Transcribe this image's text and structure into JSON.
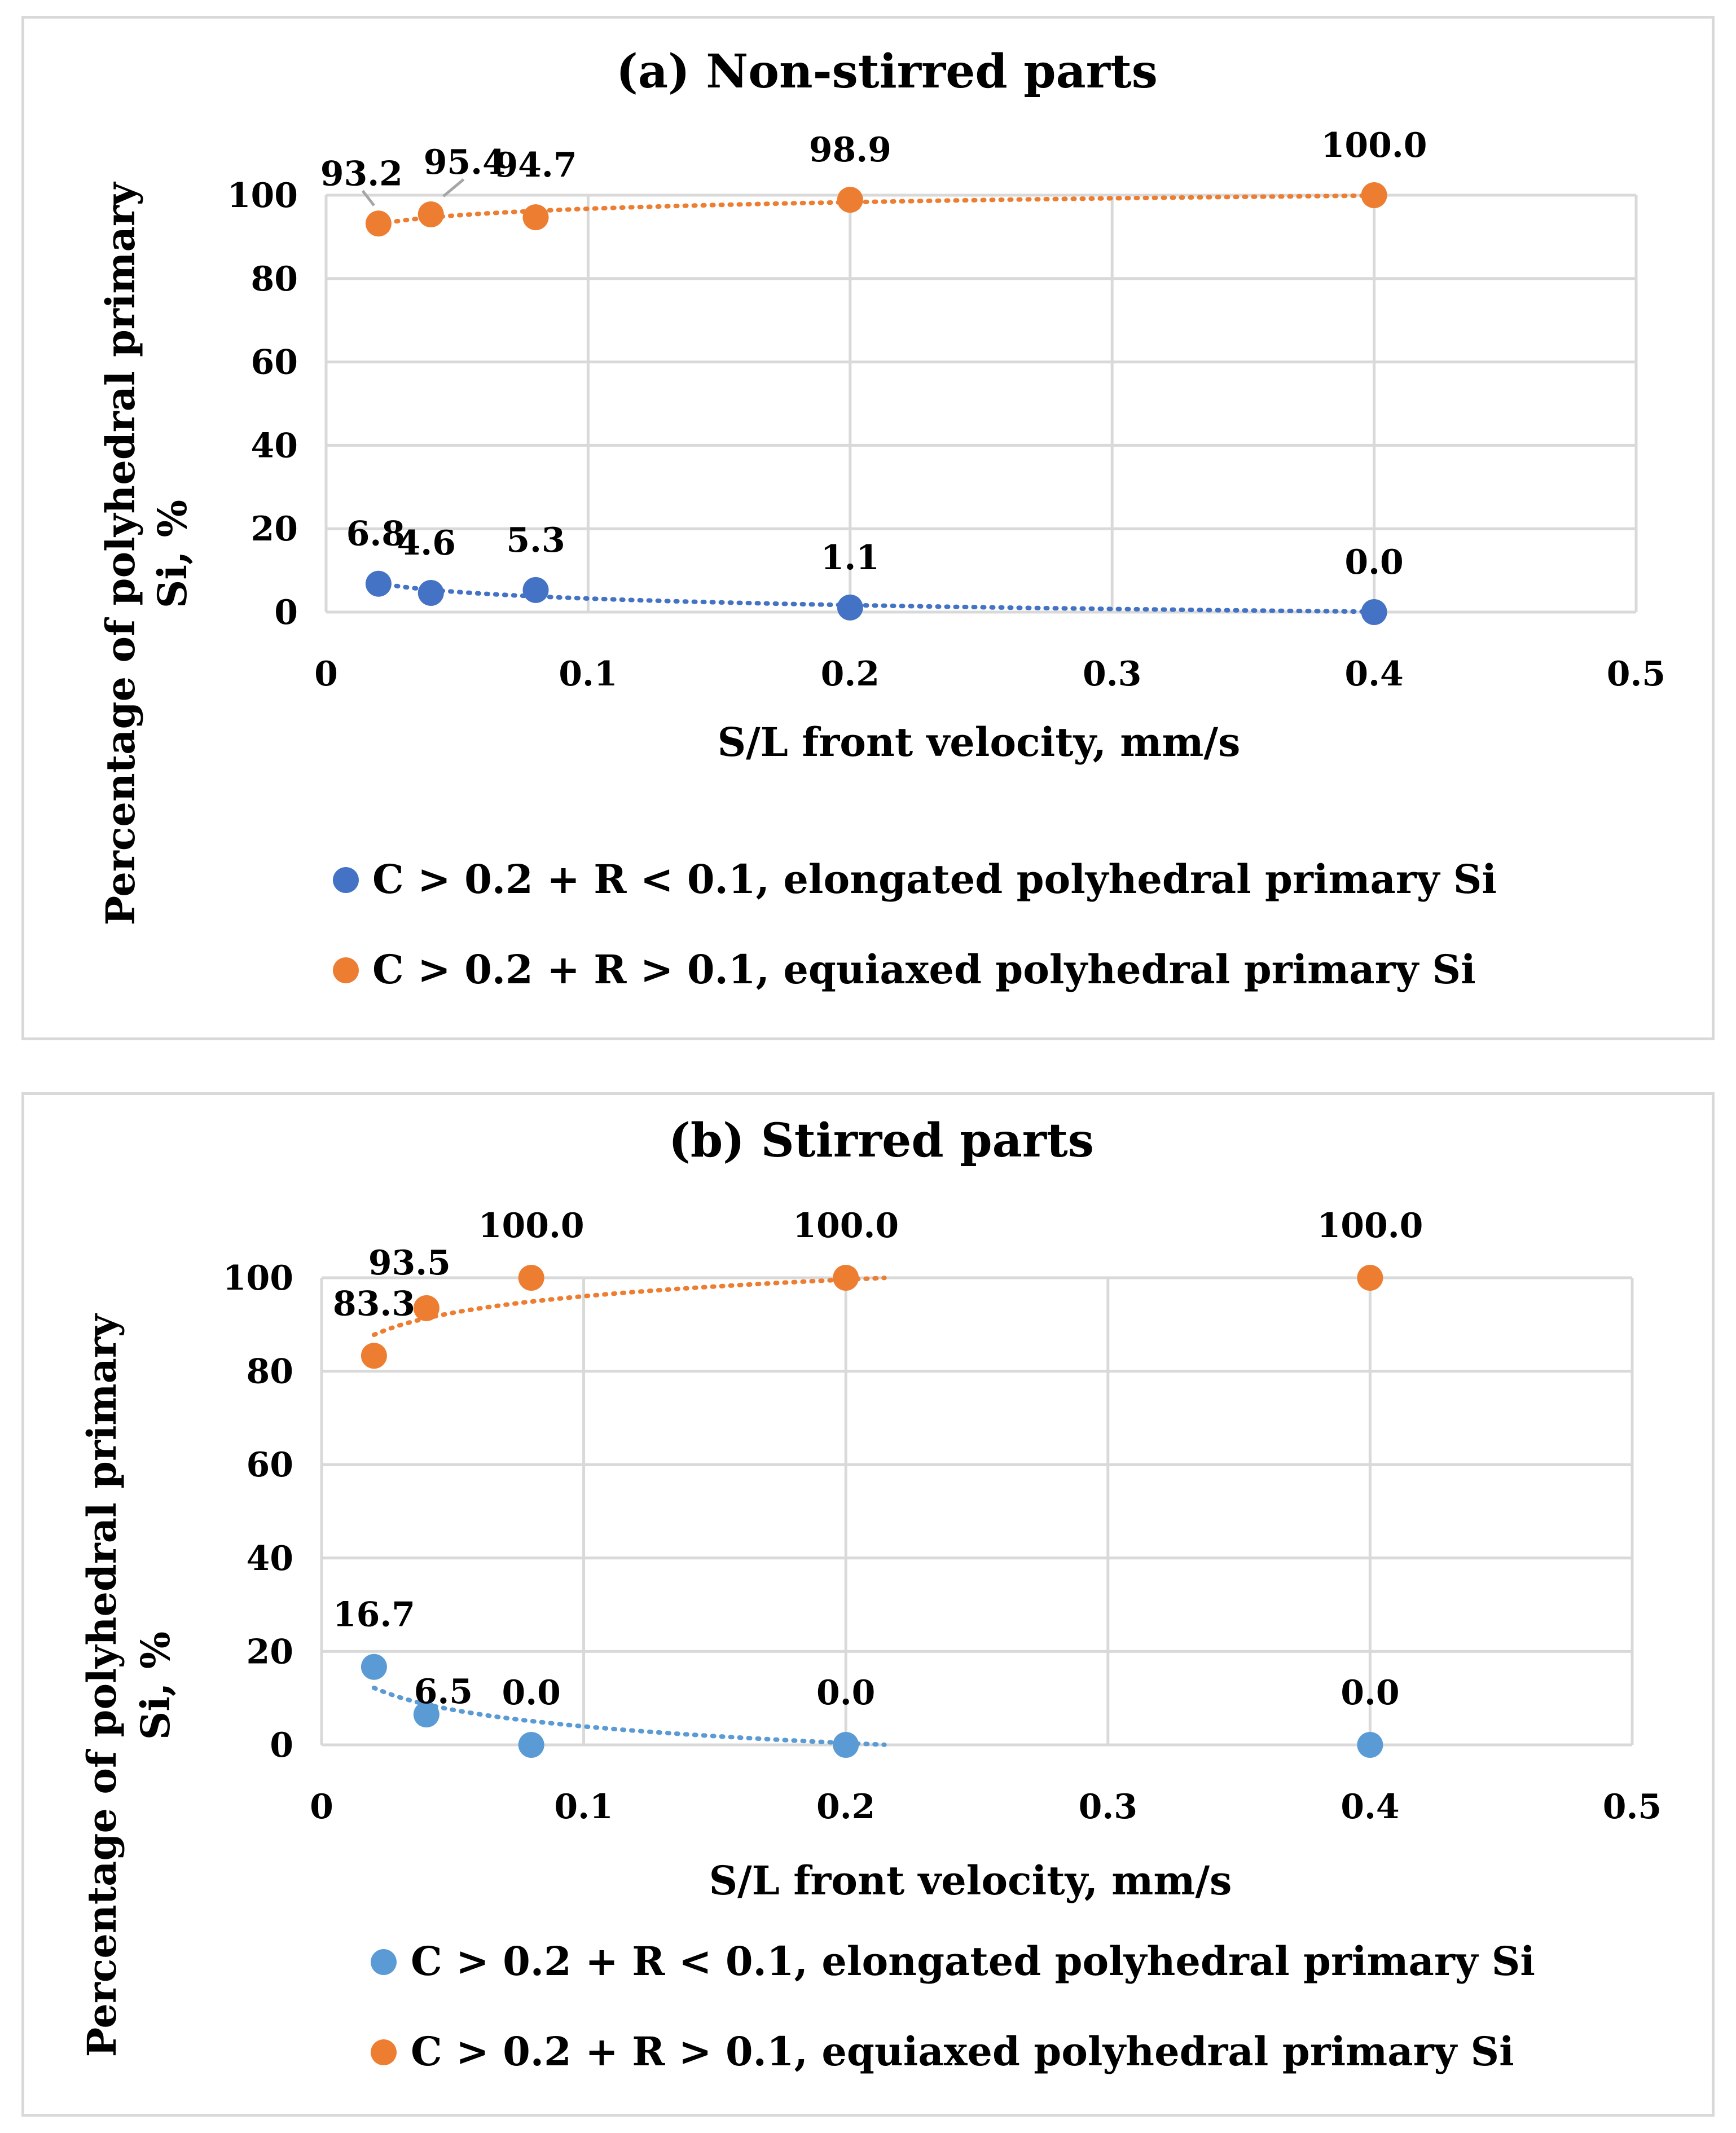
{
  "chart_data": [
    {
      "id": "a",
      "type": "scatter",
      "title": "(a) Non-stirred parts",
      "xlabel": "S/L front  velocity, mm/s",
      "ylabel_line1": "Percentage of polyhedral primary",
      "ylabel_line2": "Si, %",
      "xlim": [
        0,
        0.5
      ],
      "ylim": [
        0,
        100
      ],
      "x_ticks": [
        "0",
        "0.1",
        "0.2",
        "0.3",
        "0.4",
        "0.5"
      ],
      "y_ticks": [
        "0",
        "20",
        "40",
        "60",
        "80",
        "100"
      ],
      "grid": true,
      "legend_position": "bottom",
      "series": [
        {
          "name": "C > 0.2 + R < 0.1, elongated polyhedral primary Si",
          "color": "#4472C4",
          "trendline": true,
          "x": [
            0.02,
            0.04,
            0.08,
            0.2,
            0.4
          ],
          "y": [
            6.8,
            4.6,
            5.3,
            1.1,
            0.0
          ],
          "labels": [
            "6.8",
            "4.6",
            "5.3",
            "1.1",
            "0.0"
          ]
        },
        {
          "name": "C > 0.2 + R > 0.1, equiaxed polyhedral primary Si",
          "color": "#ED7D31",
          "trendline": true,
          "x": [
            0.02,
            0.04,
            0.08,
            0.2,
            0.4
          ],
          "y": [
            93.2,
            95.4,
            94.7,
            98.9,
            100.0
          ],
          "labels": [
            "93.2",
            "95.4",
            "94.7",
            "98.9",
            "100.0"
          ]
        }
      ]
    },
    {
      "id": "b",
      "type": "scatter",
      "title": "(b) Stirred parts",
      "xlabel": "S/L front  velocity, mm/s",
      "ylabel_line1": "Percentage of polyhedral primary",
      "ylabel_line2": "Si, %",
      "xlim": [
        0,
        0.5
      ],
      "ylim": [
        0,
        100
      ],
      "x_ticks": [
        "0",
        "0.1",
        "0.2",
        "0.3",
        "0.4",
        "0.5"
      ],
      "y_ticks": [
        "0",
        "20",
        "40",
        "60",
        "80",
        "100"
      ],
      "grid": true,
      "legend_position": "bottom",
      "series": [
        {
          "name": "C > 0.2 + R < 0.1, elongated polyhedral primary Si",
          "color": "#5B9BD5",
          "trendline": true,
          "x": [
            0.02,
            0.04,
            0.08,
            0.2,
            0.4
          ],
          "y": [
            16.7,
            6.5,
            0.0,
            0.0,
            0.0
          ],
          "labels": [
            "16.7",
            "6.5",
            "0.0",
            "0.0",
            "0.0"
          ]
        },
        {
          "name": "C > 0.2 + R > 0.1, equiaxed polyhedral primary Si",
          "color": "#ED7D31",
          "trendline": true,
          "x": [
            0.02,
            0.04,
            0.08,
            0.2,
            0.4
          ],
          "y": [
            83.3,
            93.5,
            100.0,
            100.0,
            100.0
          ],
          "labels": [
            "83.3",
            "93.5",
            "100.0",
            "100.0",
            "100.0"
          ]
        }
      ]
    }
  ]
}
